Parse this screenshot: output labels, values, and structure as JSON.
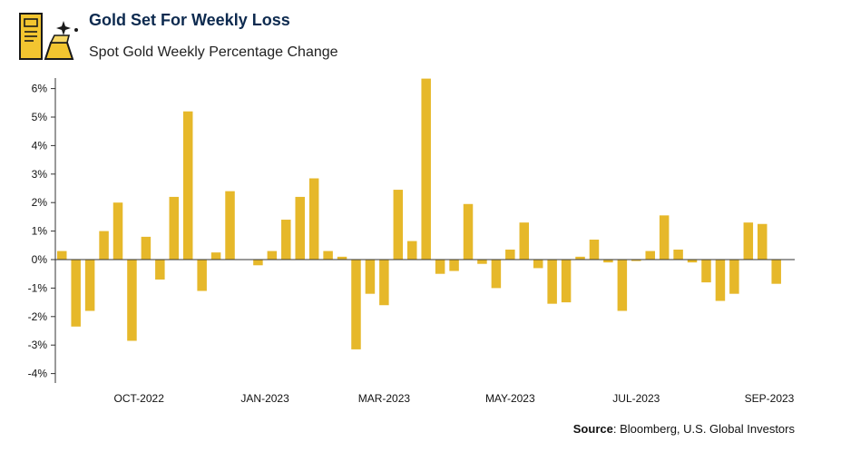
{
  "header": {
    "title": "Gold Set For Weekly Loss",
    "subtitle": "Spot Gold Weekly Percentage Change"
  },
  "logo": {
    "icon": "gold-bars-icon"
  },
  "source": {
    "label": "Source",
    "text": ": Bloomberg, U.S. Global Investors"
  },
  "colors": {
    "bar": "#e6b82a",
    "axis": "#333333",
    "title": "#0d2a4f"
  },
  "chart_data": {
    "type": "bar",
    "title": "Gold Set For Weekly Loss",
    "subtitle": "Spot Gold Weekly Percentage Change",
    "xlabel": "",
    "ylabel": "",
    "ylim": [
      -4.5,
      6.5
    ],
    "yticks": [
      6,
      5,
      4,
      3,
      2,
      1,
      0,
      -1,
      -2,
      -3,
      -4
    ],
    "ytick_labels": [
      "6%",
      "5%",
      "4%",
      "3%",
      "2%",
      "1%",
      "0%",
      "-1%",
      "-2%",
      "-3%",
      "-4%"
    ],
    "xtick_labels": [
      {
        "label": "OCT-2022",
        "index": 5.5
      },
      {
        "label": "JAN-2023",
        "index": 14.5
      },
      {
        "label": "MAR-2023",
        "index": 23
      },
      {
        "label": "MAY-2023",
        "index": 32
      },
      {
        "label": "JUL-2023",
        "index": 41
      },
      {
        "label": "SEP-2023",
        "index": 50.5
      }
    ],
    "grid": false,
    "legend": "none",
    "values": [
      0.3,
      -2.35,
      -1.8,
      1.0,
      2.0,
      -2.85,
      0.8,
      -0.7,
      2.2,
      5.2,
      -1.1,
      0.25,
      2.4,
      null,
      -0.2,
      0.3,
      1.4,
      2.2,
      2.85,
      0.3,
      0.1,
      -3.15,
      -1.2,
      -1.6,
      2.45,
      0.65,
      6.35,
      -0.5,
      -0.4,
      1.95,
      -0.15,
      -1.0,
      0.35,
      1.3,
      -0.3,
      -1.55,
      -1.5,
      0.1,
      0.7,
      -0.1,
      -1.8,
      -0.05,
      0.3,
      1.55,
      0.35,
      -0.1,
      -0.8,
      -1.45,
      -1.2,
      1.3,
      1.25,
      -0.85
    ]
  }
}
